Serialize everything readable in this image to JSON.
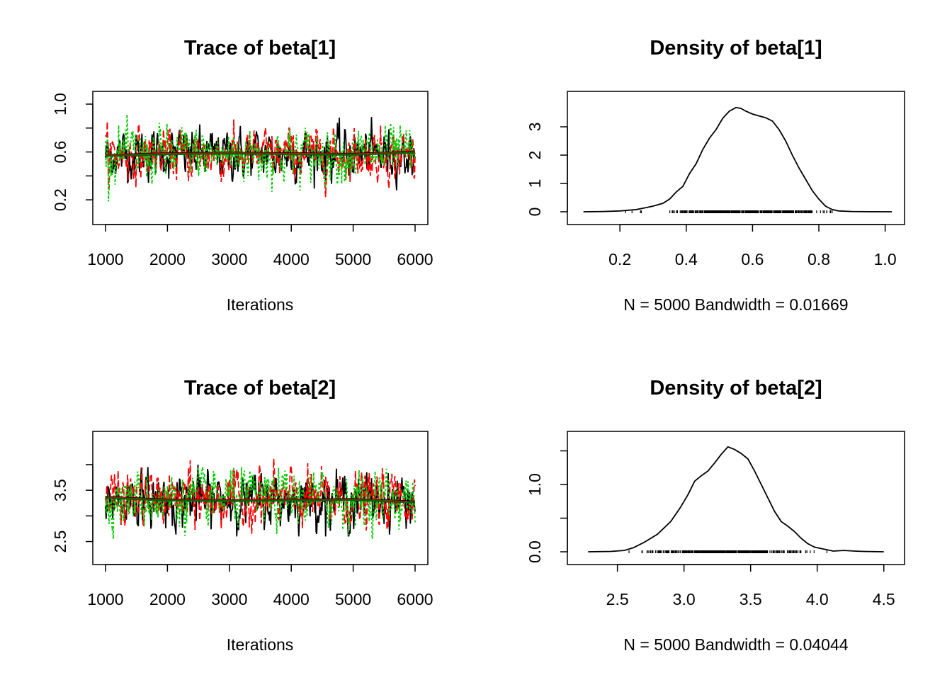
{
  "chart_data": [
    {
      "type": "line",
      "title": "Trace of beta[1]",
      "xlabel": "Iterations",
      "ylabel": "",
      "xlim": [
        1000,
        6000
      ],
      "ylim": [
        0.1,
        1.0
      ],
      "x_ticks": [
        1000,
        2000,
        3000,
        4000,
        5000,
        6000
      ],
      "x_tick_labels": [
        "1000",
        "2000",
        "3000",
        "4000",
        "5000",
        "6000"
      ],
      "y_ticks": [
        0.2,
        0.4,
        0.6,
        0.8,
        1.0
      ],
      "y_tick_labels": [
        "0.2",
        "",
        "0.6",
        "",
        "1.0"
      ],
      "series": [
        {
          "color": "#000000",
          "dash": "solid",
          "summary": {
            "mean": 0.58,
            "sd": 0.1,
            "min": 0.28,
            "max": 0.97
          }
        },
        {
          "color": "#ff0000",
          "dash": "dashed",
          "summary": {
            "mean": 0.58,
            "sd": 0.1,
            "min": 0.2,
            "max": 0.93
          }
        },
        {
          "color": "#00cd00",
          "dash": "dotted",
          "summary": {
            "mean": 0.58,
            "sd": 0.11,
            "min": 0.15,
            "max": 0.92
          }
        }
      ],
      "smooth": {
        "x": [
          1000,
          2000,
          3000,
          4000,
          5000,
          6000
        ],
        "y": [
          0.57,
          0.585,
          0.59,
          0.585,
          0.58,
          0.6
        ]
      }
    },
    {
      "type": "line",
      "title": "Density of beta[1]",
      "xlabel": "N = 5000   Bandwidth = 0.01669",
      "ylabel": "",
      "xlim": [
        0.08,
        1.02
      ],
      "ylim": [
        0,
        3.8
      ],
      "x_ticks": [
        0.2,
        0.4,
        0.6,
        0.8,
        1.0
      ],
      "x_tick_labels": [
        "0.2",
        "0.4",
        "0.6",
        "0.8",
        "1.0"
      ],
      "y_ticks": [
        0,
        1,
        2,
        3
      ],
      "y_tick_labels": [
        "0",
        "1",
        "2",
        "3"
      ],
      "x": [
        0.09,
        0.15,
        0.2,
        0.25,
        0.28,
        0.3,
        0.33,
        0.35,
        0.37,
        0.39,
        0.41,
        0.43,
        0.45,
        0.47,
        0.49,
        0.51,
        0.53,
        0.55,
        0.565,
        0.58,
        0.6,
        0.62,
        0.64,
        0.66,
        0.68,
        0.7,
        0.72,
        0.74,
        0.76,
        0.78,
        0.8,
        0.82,
        0.84,
        0.86,
        0.9,
        0.95,
        1.02
      ],
      "y": [
        0,
        0.01,
        0.03,
        0.08,
        0.15,
        0.2,
        0.3,
        0.45,
        0.7,
        0.9,
        1.35,
        1.7,
        2.2,
        2.6,
        2.9,
        3.3,
        3.55,
        3.68,
        3.65,
        3.55,
        3.45,
        3.38,
        3.32,
        3.2,
        2.9,
        2.5,
        2.0,
        1.55,
        1.15,
        0.75,
        0.45,
        0.2,
        0.08,
        0.03,
        0.01,
        0.002,
        0
      ]
    },
    {
      "type": "line",
      "title": "Trace of beta[2]",
      "xlabel": "Iterations",
      "ylabel": "",
      "xlim": [
        1000,
        6000
      ],
      "ylim": [
        2.3,
        4.4
      ],
      "x_ticks": [
        1000,
        2000,
        3000,
        4000,
        5000,
        6000
      ],
      "x_tick_labels": [
        "1000",
        "2000",
        "3000",
        "4000",
        "5000",
        "6000"
      ],
      "y_ticks": [
        2.5,
        3.0,
        3.5,
        4.0
      ],
      "y_tick_labels": [
        "2.5",
        "",
        "3.5",
        ""
      ],
      "series": [
        {
          "color": "#000000",
          "dash": "solid",
          "summary": {
            "mean": 3.32,
            "sd": 0.25,
            "min": 2.6,
            "max": 4.05
          }
        },
        {
          "color": "#ff0000",
          "dash": "dashed",
          "summary": {
            "mean": 3.32,
            "sd": 0.26,
            "min": 2.45,
            "max": 4.2
          }
        },
        {
          "color": "#00cd00",
          "dash": "dotted",
          "summary": {
            "mean": 3.33,
            "sd": 0.26,
            "min": 2.55,
            "max": 4.35
          }
        }
      ],
      "smooth": {
        "x": [
          1000,
          2000,
          3000,
          4000,
          5000,
          6000
        ],
        "y": [
          3.36,
          3.31,
          3.3,
          3.31,
          3.32,
          3.27
        ]
      }
    },
    {
      "type": "line",
      "title": "Density of beta[2]",
      "xlabel": "N = 5000   Bandwidth = 0.04044",
      "ylabel": "",
      "xlim": [
        2.22,
        4.56
      ],
      "ylim": [
        0,
        1.6
      ],
      "x_ticks": [
        2.5,
        3.0,
        3.5,
        4.0,
        4.5
      ],
      "x_tick_labels": [
        "2.5",
        "3.0",
        "3.5",
        "4.0",
        "4.5"
      ],
      "y_ticks": [
        0,
        0.5,
        1.0,
        1.5
      ],
      "y_tick_labels": [
        "0.0",
        "",
        "1.0",
        ""
      ],
      "x": [
        2.28,
        2.45,
        2.55,
        2.62,
        2.7,
        2.8,
        2.9,
        2.97,
        3.03,
        3.08,
        3.13,
        3.18,
        3.23,
        3.28,
        3.33,
        3.38,
        3.43,
        3.48,
        3.53,
        3.58,
        3.63,
        3.68,
        3.73,
        3.78,
        3.83,
        3.88,
        3.93,
        3.98,
        4.05,
        4.12,
        4.2,
        4.28,
        4.35,
        4.5
      ],
      "y": [
        0,
        0.005,
        0.02,
        0.06,
        0.14,
        0.26,
        0.45,
        0.65,
        0.85,
        1.05,
        1.13,
        1.2,
        1.32,
        1.45,
        1.56,
        1.52,
        1.46,
        1.38,
        1.2,
        1.0,
        0.8,
        0.6,
        0.45,
        0.38,
        0.3,
        0.2,
        0.12,
        0.07,
        0.04,
        0.01,
        0.02,
        0.01,
        0.005,
        0
      ]
    }
  ]
}
